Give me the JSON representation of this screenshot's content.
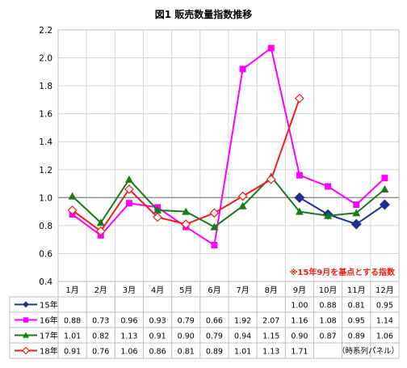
{
  "chart_data": {
    "type": "line",
    "title": "図1 販売数量指数推移",
    "annotation": "※15年9月を基点とする指数",
    "footnote": "（時系列パネル）",
    "categories": [
      "1月",
      "2月",
      "3月",
      "4月",
      "5月",
      "6月",
      "7月",
      "8月",
      "9月",
      "10月",
      "11月",
      "12月"
    ],
    "ylim": [
      0.4,
      2.2
    ],
    "yticks": [
      "0.4",
      "0.6",
      "0.8",
      "1.0",
      "1.2",
      "1.4",
      "1.6",
      "1.8",
      "2.0",
      "2.2"
    ],
    "ytick_values": [
      0.4,
      0.6,
      0.8,
      1.0,
      1.2,
      1.4,
      1.6,
      1.8,
      2.0,
      2.2
    ],
    "grid": true,
    "reference_line": 1.0,
    "series": [
      {
        "name": "15年",
        "color": "#1f2f8f",
        "marker": "diamond-filled",
        "values": [
          null,
          null,
          null,
          null,
          null,
          null,
          null,
          null,
          1.0,
          0.88,
          0.81,
          0.95
        ],
        "labels": [
          "",
          "",
          "",
          "",
          "",
          "",
          "",
          "",
          "1.00",
          "0.88",
          "0.81",
          "0.95"
        ]
      },
      {
        "name": "16年",
        "color": "#ff00ff",
        "marker": "square-filled",
        "values": [
          0.88,
          0.73,
          0.96,
          0.93,
          0.79,
          0.66,
          1.92,
          2.07,
          1.16,
          1.08,
          0.95,
          1.14
        ],
        "labels": [
          "0.88",
          "0.73",
          "0.96",
          "0.93",
          "0.79",
          "0.66",
          "1.92",
          "2.07",
          "1.16",
          "1.08",
          "0.95",
          "1.14"
        ]
      },
      {
        "name": "17年",
        "color": "#1a7a1a",
        "marker": "triangle-filled",
        "values": [
          1.01,
          0.82,
          1.13,
          0.91,
          0.9,
          0.79,
          0.94,
          1.15,
          0.9,
          0.87,
          0.89,
          1.06
        ],
        "labels": [
          "1.01",
          "0.82",
          "1.13",
          "0.91",
          "0.90",
          "0.79",
          "0.94",
          "1.15",
          "0.90",
          "0.87",
          "0.89",
          "1.06"
        ]
      },
      {
        "name": "18年",
        "color": "#e8201a",
        "marker": "diamond-open",
        "values": [
          0.91,
          0.76,
          1.06,
          0.86,
          0.81,
          0.89,
          1.01,
          1.13,
          1.71,
          null,
          null,
          null
        ],
        "labels": [
          "0.91",
          "0.76",
          "1.06",
          "0.86",
          "0.81",
          "0.89",
          "1.01",
          "1.13",
          "1.71",
          "",
          "",
          ""
        ]
      }
    ]
  }
}
